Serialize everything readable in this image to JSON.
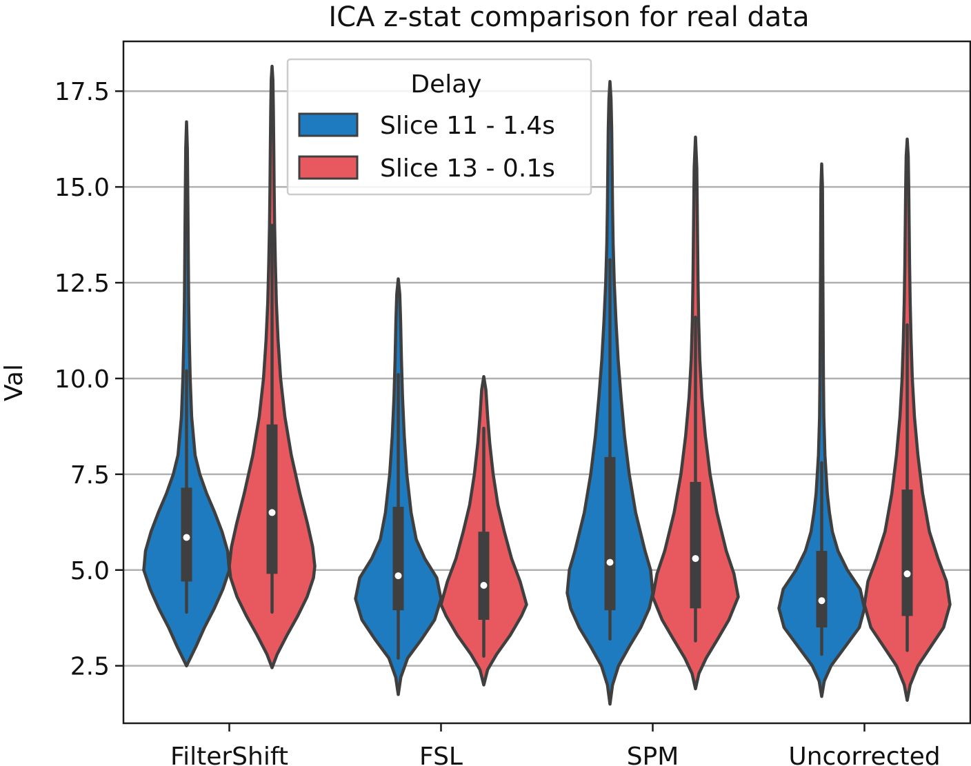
{
  "chart_data": {
    "type": "violin",
    "title": "ICA z-stat comparison for real data",
    "xlabel": "",
    "ylabel": "Val",
    "ylim": [
      1.0,
      18.8
    ],
    "yticks": [
      2.5,
      5.0,
      7.5,
      10.0,
      12.5,
      15.0,
      17.5
    ],
    "ytick_labels": [
      "2.5",
      "5.0",
      "7.5",
      "10.0",
      "12.5",
      "15.0",
      "17.5"
    ],
    "grid": "horizontal",
    "categories": [
      "FilterShift",
      "FSL",
      "SPM",
      "Uncorrected"
    ],
    "legend": {
      "title": "Delay",
      "placement": "top-left",
      "entries": [
        "Slice 11 - 1.4s",
        "Slice 13 - 0.1s"
      ]
    },
    "series": [
      {
        "name": "Slice 11 - 1.4s",
        "color": "#1f7bbf",
        "groups": [
          {
            "min": 2.5,
            "q1": 4.7,
            "median": 5.85,
            "q3": 7.15,
            "whisker_low": 3.9,
            "whisker_high": 10.2,
            "max": 16.7,
            "profile": [
              [
                2.5,
                0.0
              ],
              [
                3.0,
                0.22
              ],
              [
                3.5,
                0.42
              ],
              [
                4.0,
                0.65
              ],
              [
                4.5,
                0.85
              ],
              [
                5.0,
                1.0
              ],
              [
                5.5,
                0.96
              ],
              [
                6.0,
                0.83
              ],
              [
                6.5,
                0.66
              ],
              [
                7.0,
                0.47
              ],
              [
                7.5,
                0.31
              ],
              [
                8.0,
                0.2
              ],
              [
                9.0,
                0.12
              ],
              [
                10.0,
                0.085
              ],
              [
                11.0,
                0.065
              ],
              [
                12.0,
                0.05
              ],
              [
                13.0,
                0.042
              ],
              [
                14.0,
                0.035
              ],
              [
                15.0,
                0.028
              ],
              [
                16.0,
                0.02
              ],
              [
                16.7,
                0.0
              ]
            ]
          },
          {
            "min": 1.75,
            "q1": 3.95,
            "median": 4.85,
            "q3": 6.65,
            "whisker_low": 2.7,
            "whisker_high": 10.1,
            "max": 12.6,
            "profile": [
              [
                1.75,
                0.0
              ],
              [
                2.2,
                0.06
              ],
              [
                2.7,
                0.22
              ],
              [
                3.2,
                0.55
              ],
              [
                3.7,
                0.85
              ],
              [
                4.25,
                1.0
              ],
              [
                4.8,
                0.9
              ],
              [
                5.3,
                0.62
              ],
              [
                5.8,
                0.42
              ],
              [
                6.5,
                0.3
              ],
              [
                7.5,
                0.2
              ],
              [
                8.5,
                0.14
              ],
              [
                9.5,
                0.1
              ],
              [
                10.5,
                0.075
              ],
              [
                11.5,
                0.055
              ],
              [
                12.2,
                0.035
              ],
              [
                12.6,
                0.0
              ]
            ]
          },
          {
            "min": 1.5,
            "q1": 3.95,
            "median": 5.2,
            "q3": 7.95,
            "whisker_low": 3.2,
            "whisker_high": 13.1,
            "max": 17.75,
            "profile": [
              [
                1.5,
                0.0
              ],
              [
                2.0,
                0.06
              ],
              [
                2.5,
                0.2
              ],
              [
                3.0,
                0.45
              ],
              [
                3.5,
                0.72
              ],
              [
                4.0,
                0.92
              ],
              [
                4.4,
                1.0
              ],
              [
                5.0,
                0.95
              ],
              [
                5.5,
                0.82
              ],
              [
                6.5,
                0.6
              ],
              [
                7.5,
                0.45
              ],
              [
                8.5,
                0.34
              ],
              [
                9.5,
                0.26
              ],
              [
                10.5,
                0.19
              ],
              [
                11.5,
                0.14
              ],
              [
                12.5,
                0.1
              ],
              [
                13.5,
                0.075
              ],
              [
                14.5,
                0.06
              ],
              [
                15.5,
                0.05
              ],
              [
                16.5,
                0.04
              ],
              [
                17.3,
                0.025
              ],
              [
                17.75,
                0.0
              ]
            ]
          },
          {
            "min": 1.7,
            "q1": 3.5,
            "median": 4.2,
            "q3": 5.5,
            "whisker_low": 2.8,
            "whisker_high": 7.8,
            "max": 15.6,
            "profile": [
              [
                1.7,
                0.0
              ],
              [
                2.1,
                0.06
              ],
              [
                2.5,
                0.22
              ],
              [
                3.0,
                0.55
              ],
              [
                3.5,
                0.88
              ],
              [
                4.0,
                1.0
              ],
              [
                4.5,
                0.9
              ],
              [
                5.0,
                0.6
              ],
              [
                5.5,
                0.38
              ],
              [
                6.0,
                0.25
              ],
              [
                6.5,
                0.18
              ],
              [
                7.0,
                0.13
              ],
              [
                8.0,
                0.075
              ],
              [
                9.0,
                0.05
              ],
              [
                10.0,
                0.04
              ],
              [
                11.0,
                0.035
              ],
              [
                12.0,
                0.03
              ],
              [
                13.0,
                0.026
              ],
              [
                14.0,
                0.022
              ],
              [
                15.0,
                0.018
              ],
              [
                15.6,
                0.0
              ]
            ]
          }
        ]
      },
      {
        "name": "Slice 13 - 0.1s",
        "color": "#e8595f",
        "groups": [
          {
            "min": 2.45,
            "q1": 4.9,
            "median": 6.5,
            "q3": 8.8,
            "whisker_low": 3.9,
            "whisker_high": 14.0,
            "max": 18.15,
            "profile": [
              [
                2.45,
                0.0
              ],
              [
                2.8,
                0.12
              ],
              [
                3.3,
                0.35
              ],
              [
                3.8,
                0.6
              ],
              [
                4.3,
                0.82
              ],
              [
                4.8,
                0.97
              ],
              [
                5.1,
                1.0
              ],
              [
                5.6,
                0.95
              ],
              [
                6.2,
                0.83
              ],
              [
                7.0,
                0.65
              ],
              [
                8.0,
                0.45
              ],
              [
                9.0,
                0.3
              ],
              [
                10.0,
                0.2
              ],
              [
                11.0,
                0.14
              ],
              [
                12.0,
                0.1
              ],
              [
                13.0,
                0.078
              ],
              [
                14.0,
                0.06
              ],
              [
                15.0,
                0.048
              ],
              [
                16.0,
                0.04
              ],
              [
                17.0,
                0.03
              ],
              [
                17.8,
                0.02
              ],
              [
                18.15,
                0.0
              ]
            ]
          },
          {
            "min": 2.0,
            "q1": 3.7,
            "median": 4.6,
            "q3": 6.0,
            "whisker_low": 2.75,
            "whisker_high": 8.7,
            "max": 10.05,
            "profile": [
              [
                2.0,
                0.0
              ],
              [
                2.4,
                0.09
              ],
              [
                2.8,
                0.3
              ],
              [
                3.3,
                0.62
              ],
              [
                3.8,
                0.88
              ],
              [
                4.1,
                1.0
              ],
              [
                4.7,
                0.85
              ],
              [
                5.3,
                0.65
              ],
              [
                6.0,
                0.48
              ],
              [
                6.7,
                0.33
              ],
              [
                7.5,
                0.22
              ],
              [
                8.3,
                0.14
              ],
              [
                9.0,
                0.09
              ],
              [
                9.7,
                0.05
              ],
              [
                10.05,
                0.0
              ]
            ]
          },
          {
            "min": 1.9,
            "q1": 4.0,
            "median": 5.3,
            "q3": 7.3,
            "whisker_low": 3.15,
            "whisker_high": 11.6,
            "max": 16.3,
            "profile": [
              [
                1.9,
                0.0
              ],
              [
                2.3,
                0.08
              ],
              [
                2.7,
                0.25
              ],
              [
                3.2,
                0.52
              ],
              [
                3.7,
                0.78
              ],
              [
                4.3,
                1.0
              ],
              [
                4.9,
                0.9
              ],
              [
                5.5,
                0.72
              ],
              [
                6.5,
                0.5
              ],
              [
                7.5,
                0.34
              ],
              [
                8.5,
                0.23
              ],
              [
                9.5,
                0.15
              ],
              [
                10.5,
                0.1
              ],
              [
                11.5,
                0.075
              ],
              [
                12.5,
                0.06
              ],
              [
                13.5,
                0.05
              ],
              [
                14.5,
                0.04
              ],
              [
                15.5,
                0.03
              ],
              [
                16.3,
                0.0
              ]
            ]
          },
          {
            "min": 1.6,
            "q1": 3.8,
            "median": 4.9,
            "q3": 7.1,
            "whisker_low": 2.9,
            "whisker_high": 11.4,
            "max": 16.25,
            "profile": [
              [
                1.6,
                0.0
              ],
              [
                2.0,
                0.07
              ],
              [
                2.5,
                0.25
              ],
              [
                3.0,
                0.55
              ],
              [
                3.5,
                0.85
              ],
              [
                4.1,
                1.0
              ],
              [
                4.7,
                0.92
              ],
              [
                5.3,
                0.72
              ],
              [
                6.0,
                0.52
              ],
              [
                7.0,
                0.36
              ],
              [
                8.0,
                0.25
              ],
              [
                9.0,
                0.17
              ],
              [
                10.0,
                0.12
              ],
              [
                11.0,
                0.09
              ],
              [
                12.0,
                0.07
              ],
              [
                13.0,
                0.055
              ],
              [
                14.0,
                0.045
              ],
              [
                15.0,
                0.035
              ],
              [
                15.8,
                0.025
              ],
              [
                16.25,
                0.0
              ]
            ]
          }
        ]
      }
    ]
  }
}
